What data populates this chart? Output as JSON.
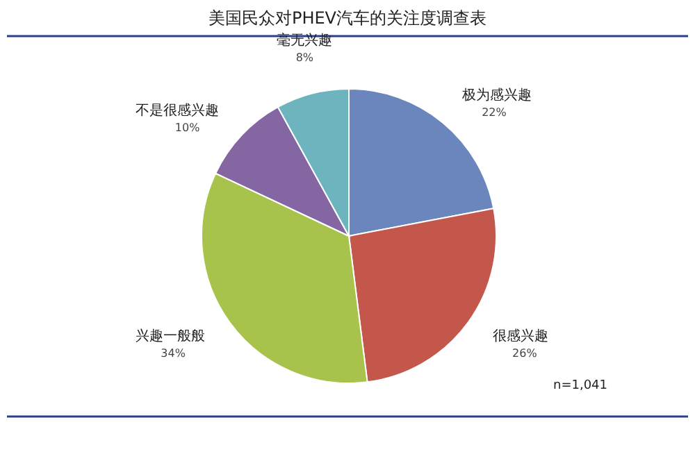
{
  "chart_data": {
    "type": "pie",
    "title": "美国民众对PHEV汽车的关注度调查表",
    "categories": [
      "极为感兴趣",
      "很感兴趣",
      "兴趣一般般",
      "不是很感兴趣",
      "毫无兴趣"
    ],
    "values": [
      22,
      26,
      34,
      10,
      8
    ],
    "value_labels": [
      "22%",
      "26%",
      "34%",
      "10%",
      "8%"
    ],
    "colors": [
      "#6a86bc",
      "#c3574b",
      "#a8c34c",
      "#8466a3",
      "#6db4bf"
    ],
    "annotations": [
      "n=1,041"
    ],
    "legend": false
  }
}
